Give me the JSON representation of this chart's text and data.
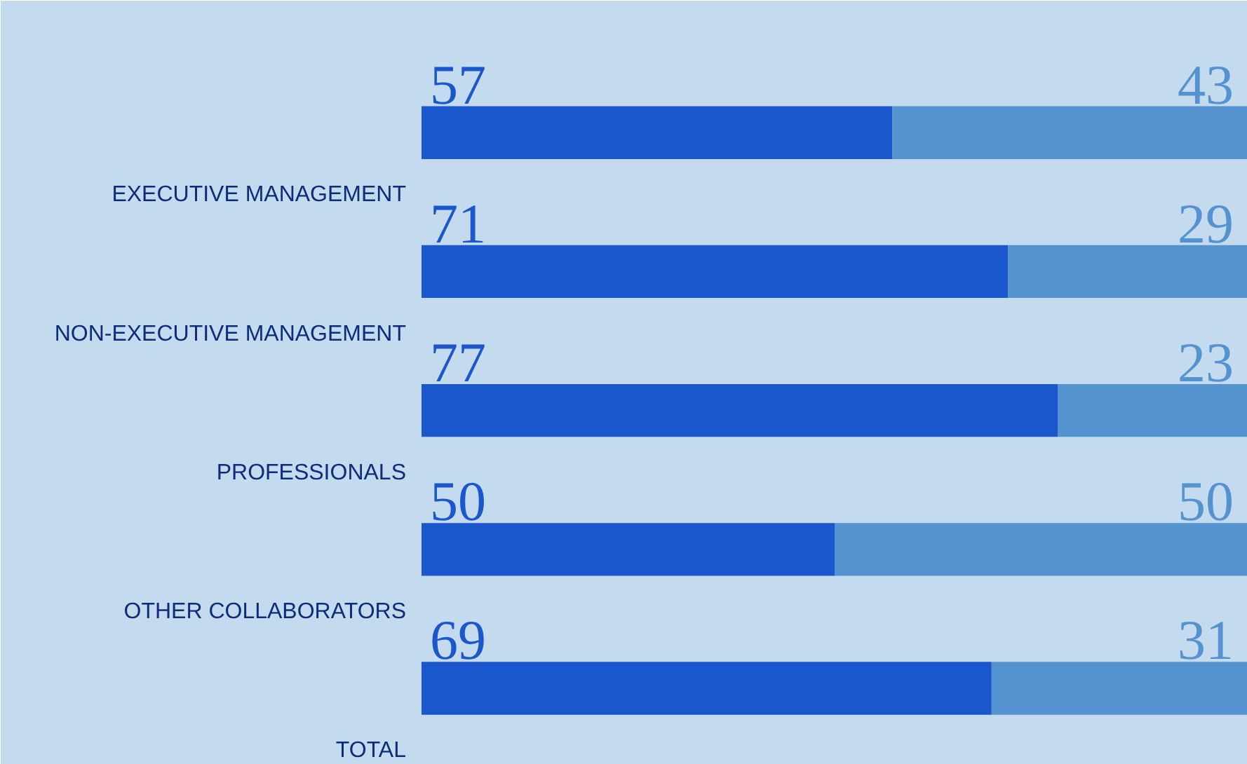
{
  "chart_data": {
    "type": "bar",
    "orientation": "horizontal",
    "stacked": true,
    "data_labels": true,
    "grid": false,
    "categories": [
      "EXECUTIVE MANAGEMENT",
      "NON-EXECUTIVE MANAGEMENT",
      "PROFESSIONALS",
      "OTHER COLLABORATORS",
      "TOTAL"
    ],
    "series": [
      {
        "color": "#1a56cc",
        "values": [
          57,
          71,
          77,
          50,
          69
        ]
      },
      {
        "color": "#5592d0",
        "values": [
          43,
          29,
          23,
          50,
          31
        ]
      }
    ]
  }
}
